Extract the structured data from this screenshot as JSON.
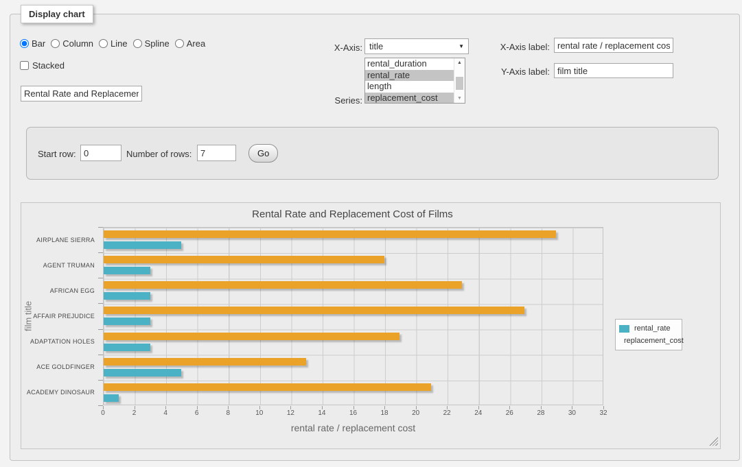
{
  "panel": {
    "legend": "Display chart"
  },
  "controls": {
    "chart_types": {
      "options": [
        "Bar",
        "Column",
        "Line",
        "Spline",
        "Area"
      ],
      "selected": "Bar"
    },
    "stacked": {
      "label": "Stacked",
      "checked": false
    },
    "chart_title_input": {
      "value": "Rental Rate and Replacement Cost of Films"
    },
    "x_axis": {
      "label": "X-Axis:",
      "selected": "title"
    },
    "series_select": {
      "label": "Series:",
      "options": [
        "rental_duration",
        "rental_rate",
        "length",
        "replacement_cost"
      ],
      "selected": [
        "rental_rate",
        "replacement_cost"
      ]
    },
    "x_axis_label": {
      "label": "X-Axis label:",
      "value": "rental rate / replacement cost"
    },
    "y_axis_label": {
      "label": "Y-Axis label:",
      "value": "film title"
    }
  },
  "params": {
    "start_row": {
      "label": "Start row:",
      "value": "0"
    },
    "num_rows": {
      "label": "Number of rows:",
      "value": "7"
    },
    "go_label": "Go"
  },
  "chart_data": {
    "type": "bar",
    "orientation": "horizontal",
    "title": "Rental Rate and Replacement Cost of Films",
    "categories": [
      "AIRPLANE SIERRA",
      "AGENT TRUMAN",
      "AFRICAN EGG",
      "AFFAIR PREJUDICE",
      "ADAPTATION HOLES",
      "ACE GOLDFINGER",
      "ACADEMY DINOSAUR"
    ],
    "series": [
      {
        "name": "rental_rate",
        "color": "#4bb2c5",
        "values": [
          4.99,
          2.99,
          2.99,
          2.99,
          2.99,
          4.99,
          0.99
        ]
      },
      {
        "name": "replacement_cost",
        "color": "#eaa228",
        "values": [
          28.99,
          17.99,
          22.99,
          26.99,
          18.99,
          12.99,
          20.99
        ]
      }
    ],
    "bar_draw_order": [
      "replacement_cost",
      "rental_rate"
    ],
    "xlabel": "rental rate / replacement cost",
    "ylabel": "film title",
    "xlim": [
      0,
      32
    ],
    "xticks": [
      0,
      2,
      4,
      6,
      8,
      10,
      12,
      14,
      16,
      18,
      20,
      22,
      24,
      26,
      28,
      30,
      32
    ],
    "grid": true,
    "legend": {
      "position": "right",
      "entries": [
        "rental_rate",
        "replacement_cost"
      ]
    }
  }
}
